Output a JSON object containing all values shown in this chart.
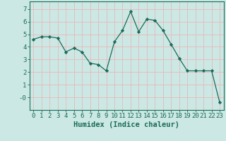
{
  "x": [
    0,
    1,
    2,
    3,
    4,
    5,
    6,
    7,
    8,
    9,
    10,
    11,
    12,
    13,
    14,
    15,
    16,
    17,
    18,
    19,
    20,
    21,
    22,
    23
  ],
  "y": [
    4.6,
    4.8,
    4.8,
    4.7,
    3.6,
    3.9,
    3.6,
    2.7,
    2.6,
    2.1,
    4.4,
    5.3,
    6.8,
    5.2,
    6.2,
    6.1,
    5.3,
    4.2,
    3.1,
    2.1,
    2.1,
    2.1,
    2.1,
    -0.4
  ],
  "line_color": "#1a6b5a",
  "marker": "D",
  "marker_size": 2.2,
  "background_color": "#cce8e4",
  "grid_color": "#e8b8b8",
  "xlabel": "Humidex (Indice chaleur)",
  "ylim": [
    -1.0,
    7.6
  ],
  "xlim": [
    -0.5,
    23.5
  ],
  "yticks": [
    0,
    1,
    2,
    3,
    4,
    5,
    6,
    7
  ],
  "ytick_labels": [
    "-0",
    "1",
    "2",
    "3",
    "4",
    "5",
    "6",
    "7"
  ],
  "xticks": [
    0,
    1,
    2,
    3,
    4,
    5,
    6,
    7,
    8,
    9,
    10,
    11,
    12,
    13,
    14,
    15,
    16,
    17,
    18,
    19,
    20,
    21,
    22,
    23
  ],
  "font_size": 6.5,
  "tick_color": "#1a6b5a",
  "axis_color": "#1a6b5a",
  "xlabel_fontsize": 7.5
}
